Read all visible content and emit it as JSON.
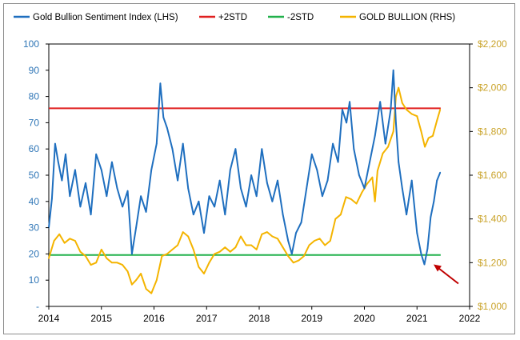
{
  "chart_data": {
    "type": "line",
    "legend": {
      "placement": "top",
      "items": [
        {
          "label": "Gold Bullion Sentiment Index (LHS)",
          "color": "#1f6fbf"
        },
        {
          "label": "+2STD",
          "color": "#e02020"
        },
        {
          "label": "-2STD",
          "color": "#22b14c"
        },
        {
          "label": "GOLD BULLION (RHS)",
          "color": "#f4b400"
        }
      ]
    },
    "x_axis": {
      "range": [
        2014,
        2022
      ],
      "ticks": [
        "2014",
        "2015",
        "2016",
        "2017",
        "2018",
        "2019",
        "2020",
        "2021",
        "2022"
      ]
    },
    "y_left": {
      "range": [
        0,
        100
      ],
      "ticks": [
        "-",
        "10",
        "20",
        "30",
        "40",
        "50",
        "60",
        "70",
        "80",
        "90",
        "100"
      ]
    },
    "y_right": {
      "range": [
        1000,
        2200
      ],
      "ticks": [
        "$1,000",
        "$1,200",
        "$1,400",
        "$1,600",
        "$1,800",
        "$2,000",
        "$2,200"
      ]
    },
    "grid": false,
    "reference_lines": [
      {
        "name": "+2STD",
        "axis": "left",
        "value": 75.5,
        "x_range": [
          2014,
          2021.45
        ],
        "color": "#e02020"
      },
      {
        "name": "-2STD",
        "axis": "left",
        "value": 19.6,
        "x_range": [
          2014,
          2021.45
        ],
        "color": "#22b14c"
      }
    ],
    "series": [
      {
        "name": "Gold Bullion Sentiment Index (LHS)",
        "axis": "left",
        "color": "#1f6fbf",
        "x": [
          2014.0,
          2014.06,
          2014.12,
          2014.18,
          2014.25,
          2014.32,
          2014.4,
          2014.5,
          2014.6,
          2014.7,
          2014.8,
          2014.9,
          2015.0,
          2015.1,
          2015.2,
          2015.3,
          2015.4,
          2015.5,
          2015.58,
          2015.66,
          2015.75,
          2015.85,
          2015.95,
          2016.05,
          2016.12,
          2016.18,
          2016.25,
          2016.35,
          2016.45,
          2016.55,
          2016.65,
          2016.75,
          2016.85,
          2016.95,
          2017.05,
          2017.15,
          2017.25,
          2017.35,
          2017.45,
          2017.55,
          2017.65,
          2017.75,
          2017.85,
          2017.95,
          2018.05,
          2018.15,
          2018.25,
          2018.35,
          2018.45,
          2018.55,
          2018.62,
          2018.7,
          2018.8,
          2018.9,
          2019.0,
          2019.1,
          2019.2,
          2019.3,
          2019.4,
          2019.5,
          2019.58,
          2019.66,
          2019.72,
          2019.8,
          2019.9,
          2020.0,
          2020.1,
          2020.2,
          2020.3,
          2020.4,
          2020.5,
          2020.55,
          2020.6,
          2020.65,
          2020.72,
          2020.8,
          2020.9,
          2021.0,
          2021.08,
          2021.14,
          2021.2,
          2021.26,
          2021.32,
          2021.38,
          2021.44
        ],
        "y": [
          30,
          41,
          62,
          55,
          48,
          58,
          42,
          52,
          38,
          47,
          35,
          58,
          52,
          42,
          55,
          45,
          38,
          44,
          20,
          30,
          42,
          36,
          52,
          62,
          85,
          72,
          68,
          60,
          48,
          62,
          45,
          35,
          40,
          28,
          42,
          38,
          48,
          35,
          52,
          60,
          45,
          38,
          50,
          42,
          60,
          47,
          40,
          48,
          35,
          25,
          20,
          28,
          32,
          45,
          58,
          52,
          42,
          48,
          62,
          55,
          75,
          70,
          78,
          60,
          50,
          45,
          55,
          65,
          78,
          62,
          75,
          90,
          70,
          55,
          45,
          35,
          48,
          28,
          20,
          16,
          22,
          34,
          40,
          48,
          51
        ]
      },
      {
        "name": "GOLD BULLION (RHS)",
        "axis": "right",
        "color": "#f4b400",
        "x": [
          2014.0,
          2014.1,
          2014.2,
          2014.3,
          2014.4,
          2014.5,
          2014.6,
          2014.7,
          2014.8,
          2014.9,
          2015.0,
          2015.1,
          2015.2,
          2015.3,
          2015.4,
          2015.5,
          2015.58,
          2015.66,
          2015.75,
          2015.85,
          2015.95,
          2016.05,
          2016.15,
          2016.25,
          2016.35,
          2016.45,
          2016.55,
          2016.65,
          2016.75,
          2016.85,
          2016.95,
          2017.05,
          2017.15,
          2017.25,
          2017.35,
          2017.45,
          2017.55,
          2017.65,
          2017.75,
          2017.85,
          2017.95,
          2018.05,
          2018.15,
          2018.25,
          2018.35,
          2018.45,
          2018.55,
          2018.65,
          2018.75,
          2018.85,
          2018.95,
          2019.05,
          2019.15,
          2019.25,
          2019.35,
          2019.45,
          2019.55,
          2019.65,
          2019.75,
          2019.85,
          2019.95,
          2020.05,
          2020.15,
          2020.2,
          2020.25,
          2020.35,
          2020.45,
          2020.55,
          2020.6,
          2020.65,
          2020.72,
          2020.8,
          2020.9,
          2021.0,
          2021.08,
          2021.15,
          2021.22,
          2021.3,
          2021.38,
          2021.44
        ],
        "y": [
          1220,
          1300,
          1330,
          1290,
          1310,
          1300,
          1250,
          1230,
          1190,
          1200,
          1260,
          1220,
          1200,
          1200,
          1190,
          1160,
          1100,
          1120,
          1150,
          1080,
          1060,
          1120,
          1230,
          1240,
          1260,
          1280,
          1340,
          1320,
          1260,
          1180,
          1150,
          1200,
          1240,
          1250,
          1270,
          1250,
          1270,
          1320,
          1280,
          1280,
          1260,
          1330,
          1340,
          1320,
          1310,
          1270,
          1230,
          1200,
          1210,
          1230,
          1280,
          1300,
          1310,
          1280,
          1300,
          1400,
          1420,
          1500,
          1490,
          1470,
          1520,
          1560,
          1590,
          1480,
          1620,
          1700,
          1730,
          1800,
          1960,
          2000,
          1930,
          1900,
          1880,
          1870,
          1800,
          1730,
          1770,
          1780,
          1850,
          1900
        ]
      }
    ],
    "annotations": [
      {
        "type": "arrow",
        "color": "#c00000",
        "points_at": {
          "x": 2021.3,
          "y_left": 16
        }
      }
    ]
  }
}
